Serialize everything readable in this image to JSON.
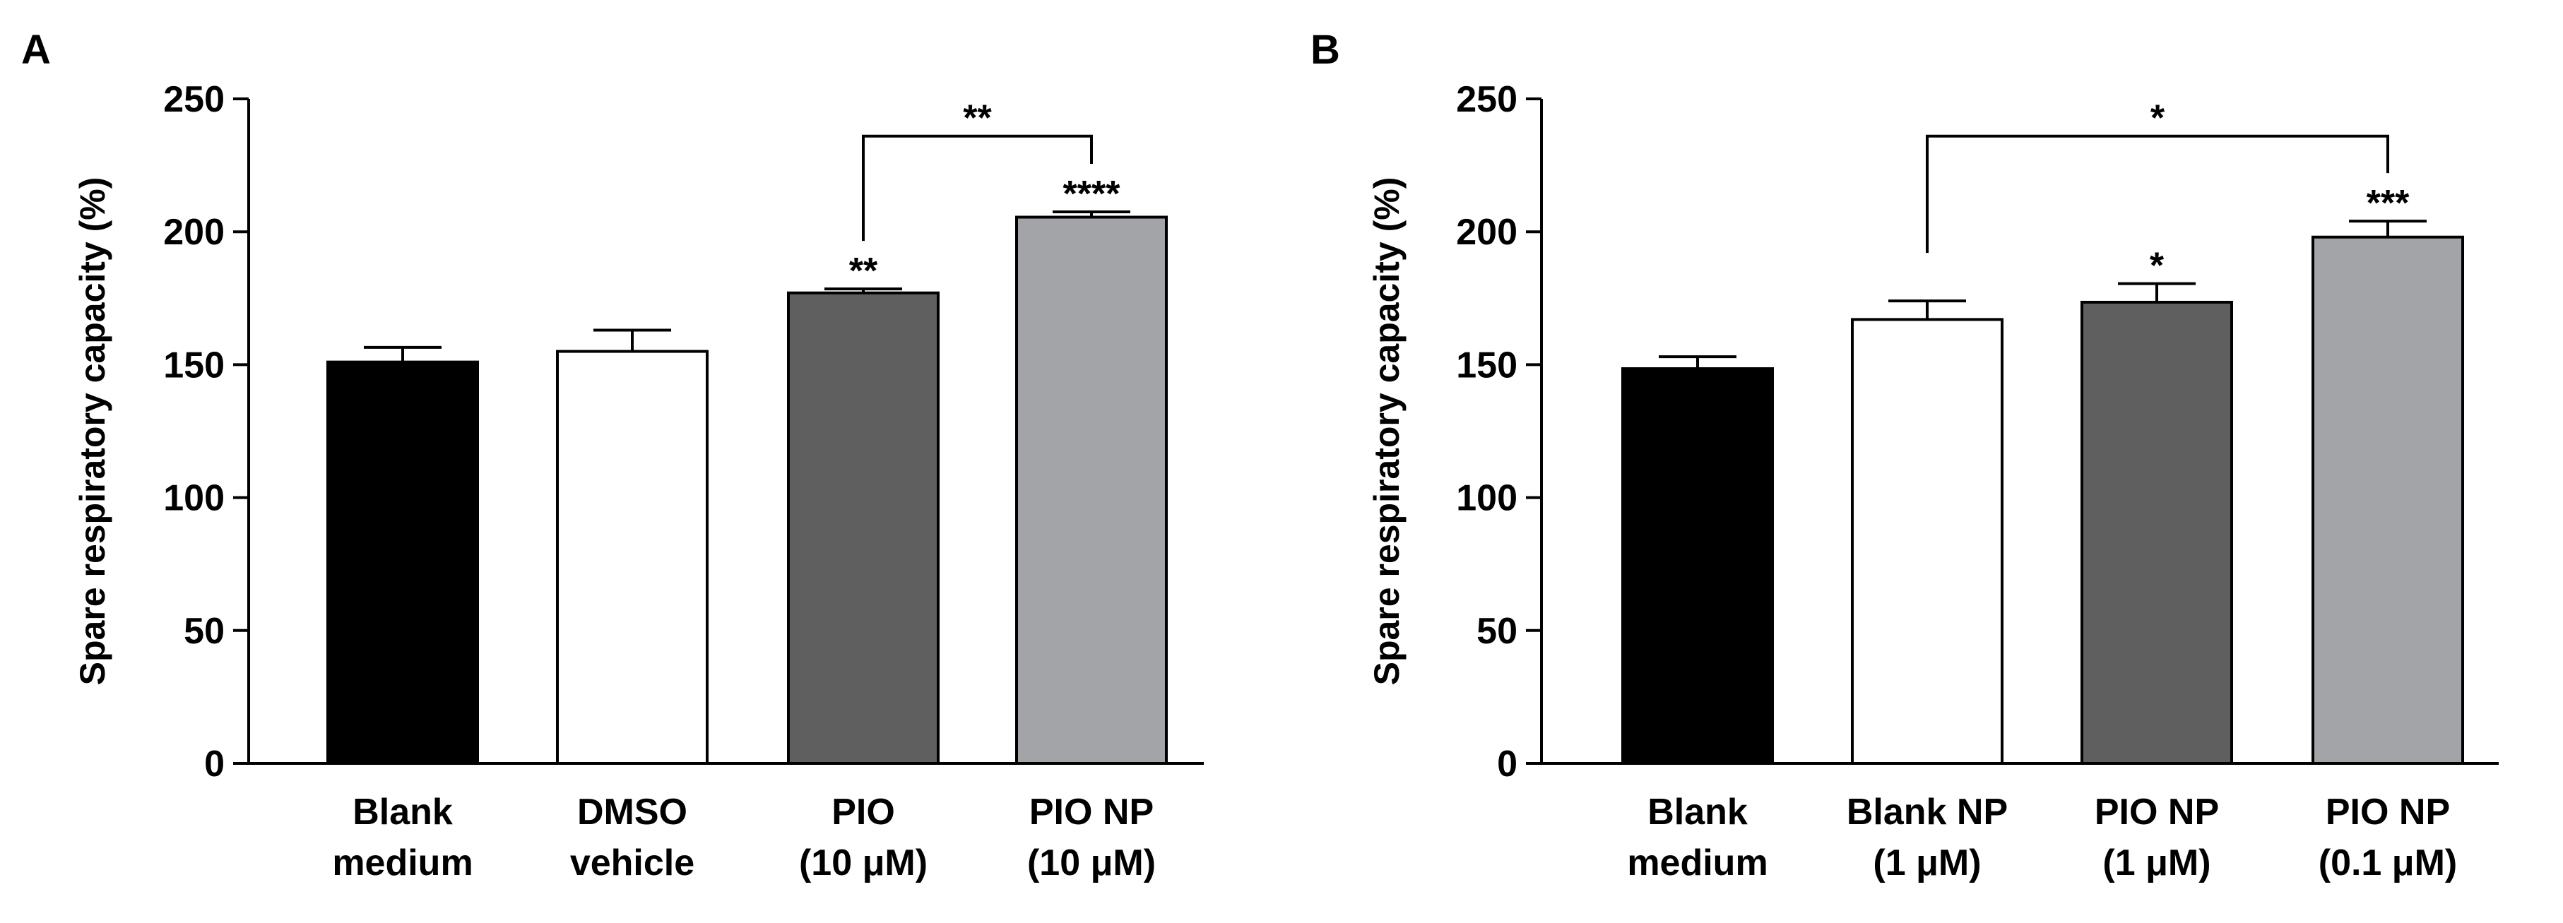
{
  "figure": {
    "panels": [
      "A",
      "B"
    ]
  },
  "colors": {
    "axis": "#000000",
    "bar_outline": "#000000"
  },
  "chart_data": [
    {
      "panel_label": "A",
      "type": "bar",
      "ylabel": "Spare respiratory capacity (%)",
      "ylim": [
        0,
        250
      ],
      "yticks": [
        0,
        50,
        100,
        150,
        200,
        250
      ],
      "categories": [
        [
          "Blank",
          "medium"
        ],
        [
          "DMSO",
          "vehicle"
        ],
        [
          "PIO",
          "(10 μM)"
        ],
        [
          "PIO NP",
          "(10 μM)"
        ]
      ],
      "values": [
        151,
        155,
        177,
        205.5
      ],
      "errors": [
        5.5,
        8,
        1.5,
        2
      ],
      "bar_colors": [
        "#000000",
        "#ffffff",
        "#5f5f5f",
        "#a3a4a7"
      ],
      "bar_annotations": [
        "",
        "",
        "**",
        "****"
      ],
      "brackets": [
        {
          "from": 2,
          "to": 3,
          "y": 236,
          "label": "**"
        }
      ]
    },
    {
      "panel_label": "B",
      "type": "bar",
      "ylabel": "Spare respiratory capacity (%)",
      "ylim": [
        0,
        250
      ],
      "yticks": [
        0,
        50,
        100,
        150,
        200,
        250
      ],
      "categories": [
        [
          "Blank",
          "medium"
        ],
        [
          "Blank NP",
          "(1 μM)"
        ],
        [
          "PIO NP",
          "(1 μM)"
        ],
        [
          "PIO NP",
          "(0.1 μM)"
        ]
      ],
      "values": [
        148.5,
        167,
        173.5,
        198
      ],
      "errors": [
        4.5,
        7,
        7,
        6
      ],
      "bar_colors": [
        "#000000",
        "#ffffff",
        "#5f5f5f",
        "#a3a4a7"
      ],
      "bar_annotations": [
        "",
        "",
        "*",
        "***"
      ],
      "brackets": [
        {
          "from": 1,
          "to": 3,
          "y": 236,
          "label": "*"
        }
      ]
    }
  ]
}
